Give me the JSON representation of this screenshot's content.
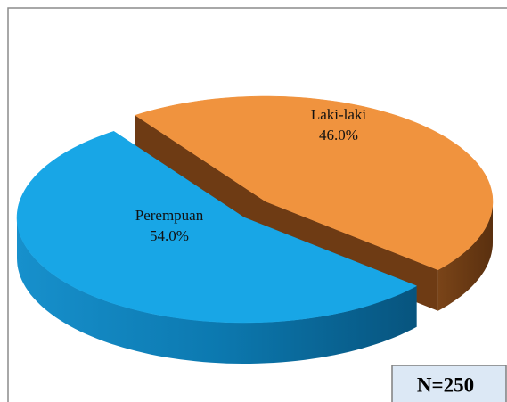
{
  "chart_data": {
    "type": "pie",
    "categories": [
      "Laki-laki",
      "Perempuan"
    ],
    "values": [
      46.0,
      54.0
    ],
    "value_labels": [
      "46.0%",
      "54.0%"
    ],
    "colors": [
      "#f0933e",
      "#18a6e6"
    ],
    "annotation": "N=250"
  }
}
